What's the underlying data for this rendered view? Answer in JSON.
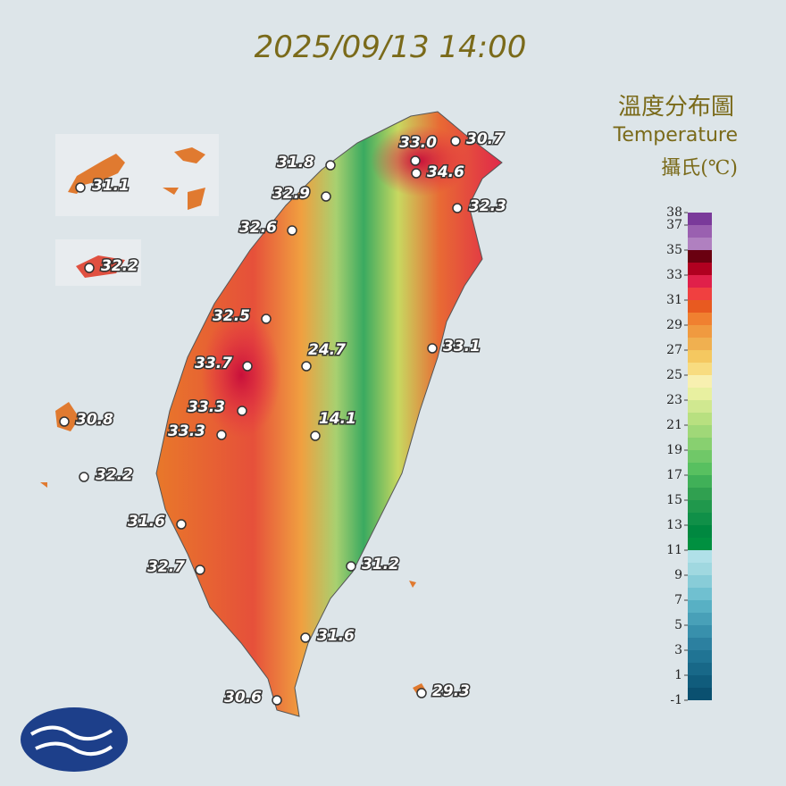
{
  "title": "2025/09/13 14:00",
  "legend": {
    "title_zh": "溫度分布圖",
    "title_en": "Temperature",
    "unit": "攝氏(℃)",
    "ticks": [
      38,
      37,
      35,
      33,
      31,
      29,
      27,
      25,
      23,
      21,
      19,
      17,
      15,
      13,
      11,
      9,
      7,
      5,
      3,
      1,
      -1
    ]
  },
  "stations": [
    "30.7",
    "33.0",
    "34.6",
    "31.8",
    "32.9",
    "32.3",
    "32.6",
    "31.1",
    "32.2",
    "32.5",
    "33.1",
    "24.7",
    "33.7",
    "33.3",
    "14.1",
    "33.3",
    "30.8",
    "32.2",
    "31.6",
    "32.7",
    "31.2",
    "31.6",
    "30.6",
    "29.3"
  ]
}
